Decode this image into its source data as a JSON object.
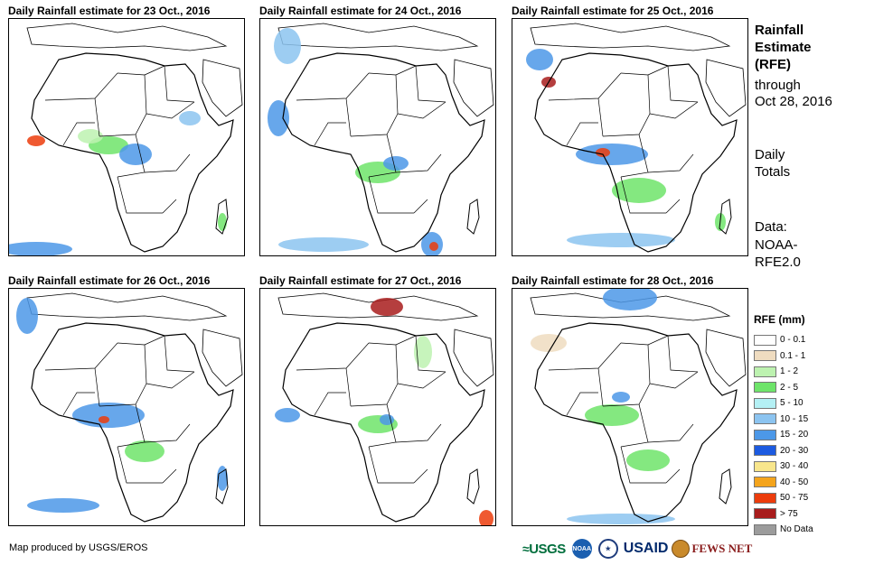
{
  "panels": [
    {
      "title": "Daily Rainfall estimate for 23 Oct., 2016"
    },
    {
      "title": "Daily Rainfall estimate for 24 Oct., 2016"
    },
    {
      "title": "Daily Rainfall estimate for 25 Oct., 2016"
    },
    {
      "title": "Daily Rainfall estimate for 26 Oct., 2016"
    },
    {
      "title": "Daily Rainfall estimate for 27 Oct., 2016"
    },
    {
      "title": "Daily Rainfall estimate for 28 Oct., 2016"
    }
  ],
  "side": {
    "line1": "Rainfall",
    "line2": "Estimate",
    "line3": "(RFE)",
    "line4": "through",
    "line5": "Oct 28, 2016",
    "line6": "Daily",
    "line7": "Totals",
    "line8": "Data:",
    "line9": "NOAA-",
    "line10": "RFE2.0"
  },
  "legend": {
    "title": "RFE (mm)",
    "items": [
      {
        "label": "0 - 0.1",
        "color": "#ffffff"
      },
      {
        "label": "0.1 - 1",
        "color": "#efdcc0"
      },
      {
        "label": "1 - 2",
        "color": "#bdf2b0"
      },
      {
        "label": "2 - 5",
        "color": "#6ee46a"
      },
      {
        "label": "5 - 10",
        "color": "#b4f0f4"
      },
      {
        "label": "10 - 15",
        "color": "#8cc4f0"
      },
      {
        "label": "15 - 20",
        "color": "#4c98e8"
      },
      {
        "label": "20 - 30",
        "color": "#1c5ae0"
      },
      {
        "label": "30 - 40",
        "color": "#f8e68c"
      },
      {
        "label": "40 - 50",
        "color": "#f4a41c"
      },
      {
        "label": "50 - 75",
        "color": "#ec3c0c"
      },
      {
        "label": "> 75",
        "color": "#a81c1c"
      },
      {
        "label": "No Data",
        "color": "#9c9c9c"
      }
    ]
  },
  "credit": "Map produced by USGS/EROS",
  "logos": {
    "usgs": "USGS",
    "noaa": "NOAA",
    "usaid": "USAID",
    "fews": "FEWS NET"
  }
}
